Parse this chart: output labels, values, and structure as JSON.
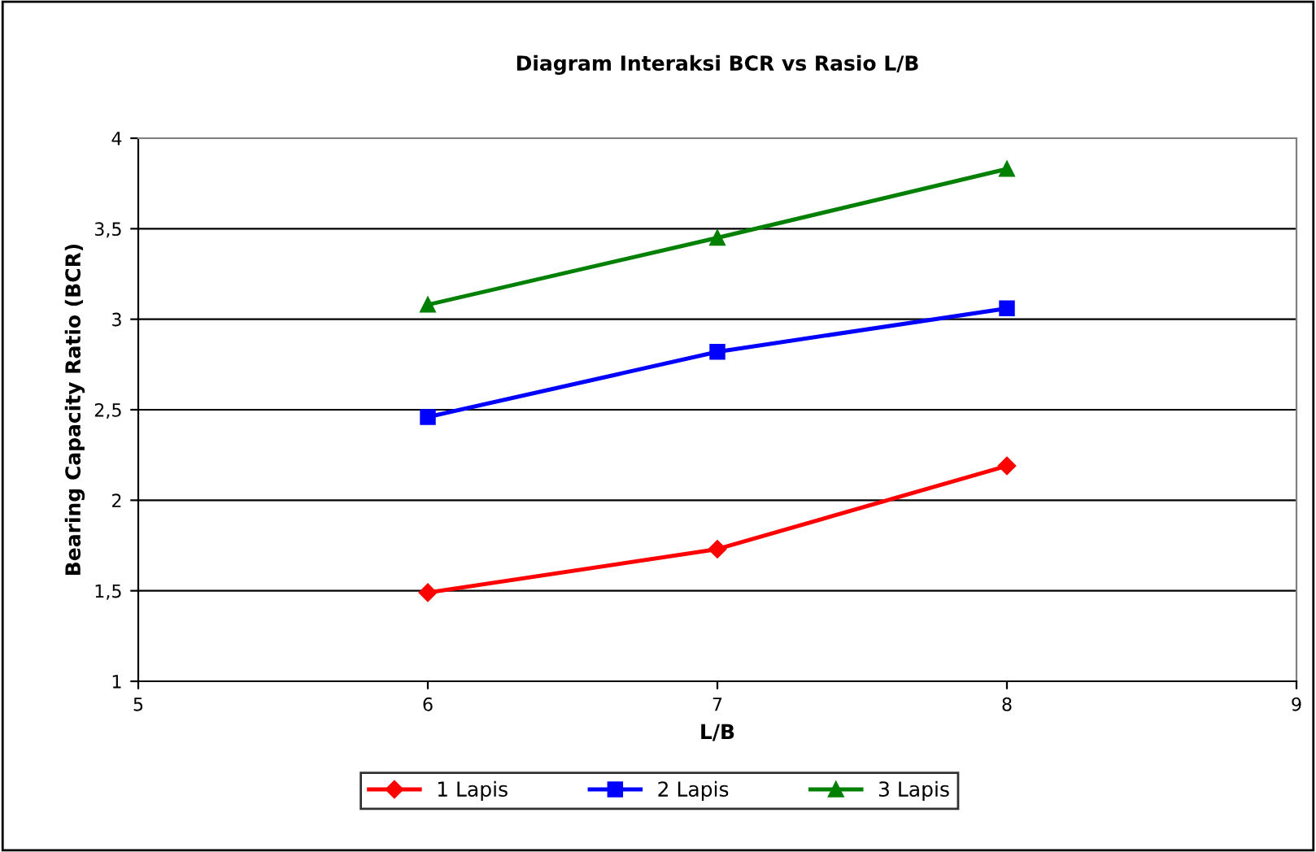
{
  "chart_data": {
    "type": "line",
    "title": "Diagram Interaksi BCR vs Rasio L/B",
    "xlabel": "L/B",
    "ylabel": "Bearing Capacity Ratio (BCR)",
    "x": [
      6,
      7,
      8
    ],
    "series": [
      {
        "name": "1 Lapis",
        "color": "#ff0000",
        "marker": "diamond",
        "values": [
          1.49,
          1.73,
          2.19
        ]
      },
      {
        "name": "2 Lapis",
        "color": "#0000ff",
        "marker": "square",
        "values": [
          2.46,
          2.82,
          3.06
        ]
      },
      {
        "name": "3 Lapis",
        "color": "#008000",
        "marker": "triangle",
        "values": [
          3.08,
          3.45,
          3.83
        ]
      }
    ],
    "xlim": [
      5,
      9
    ],
    "xticks": [
      5,
      6,
      7,
      8,
      9
    ],
    "ylim": [
      1,
      4
    ],
    "yticks": [
      1,
      {
        "value": 1.5,
        "label": "1,5"
      },
      2,
      {
        "value": 2.5,
        "label": "2,5"
      },
      3,
      {
        "value": 3.5,
        "label": "3,5"
      },
      4
    ],
    "grid": "y",
    "legend": "bottom",
    "line_style": "solid"
  }
}
